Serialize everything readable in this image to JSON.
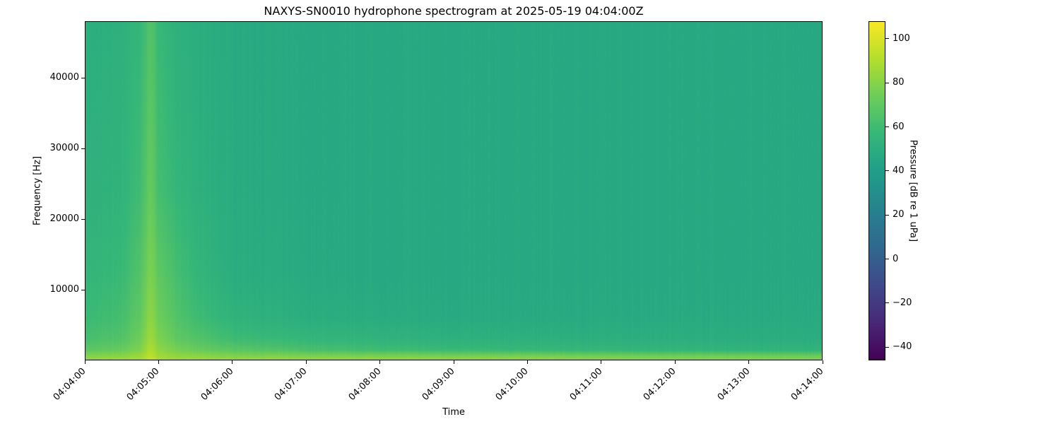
{
  "chart_data": {
    "type": "heatmap",
    "title": "NAXYS-SN0010 hydrophone spectrogram at 2025-05-19 04:04:00Z",
    "xlabel": "Time",
    "ylabel": "Frequency [Hz]",
    "colorbar_label": "Pressure [dB re 1 uPa]",
    "colormap": "viridis",
    "xlim": [
      "04:04:00",
      "04:14:00"
    ],
    "ylim": [
      0,
      48000
    ],
    "clim": [
      -46,
      108
    ],
    "x_ticks": [
      "04:04:00",
      "04:05:00",
      "04:06:00",
      "04:07:00",
      "04:08:00",
      "04:09:00",
      "04:10:00",
      "04:11:00",
      "04:12:00",
      "04:13:00",
      "04:14:00"
    ],
    "y_ticks": [
      10000,
      20000,
      30000,
      40000
    ],
    "colorbar_ticks": [
      -40,
      -20,
      0,
      20,
      40,
      60,
      80,
      100
    ],
    "grid": false,
    "times": [
      "04:04:00",
      "04:04:30",
      "04:04:45",
      "04:04:53",
      "04:05:00",
      "04:05:15",
      "04:05:30",
      "04:06:00",
      "04:07:00",
      "04:08:00",
      "04:09:00",
      "04:10:00",
      "04:11:00",
      "04:12:00",
      "04:13:00",
      "04:14:00"
    ],
    "frequencies": [
      0,
      500,
      1500,
      3000,
      6000,
      12000,
      24000,
      48000
    ],
    "values_db": [
      [
        82,
        84,
        86,
        95,
        88,
        84,
        83,
        82,
        81,
        81,
        80,
        80,
        79,
        78,
        78,
        77
      ],
      [
        80,
        82,
        85,
        94,
        87,
        83,
        82,
        80,
        79,
        79,
        78,
        78,
        77,
        76,
        76,
        75
      ],
      [
        68,
        72,
        78,
        90,
        82,
        76,
        72,
        68,
        63,
        60,
        58,
        57,
        56,
        55,
        54,
        54
      ],
      [
        62,
        66,
        74,
        86,
        78,
        70,
        66,
        60,
        56,
        54,
        52,
        52,
        51,
        51,
        50,
        50
      ],
      [
        58,
        62,
        70,
        82,
        74,
        66,
        60,
        54,
        50,
        49,
        48,
        48,
        48,
        48,
        48,
        48
      ],
      [
        55,
        58,
        66,
        78,
        70,
        62,
        56,
        50,
        48,
        47,
        47,
        47,
        47,
        47,
        47,
        47
      ],
      [
        52,
        54,
        60,
        72,
        62,
        56,
        52,
        49,
        47,
        47,
        47,
        47,
        47,
        47,
        47,
        47
      ],
      [
        50,
        52,
        56,
        66,
        58,
        52,
        50,
        48,
        47,
        47,
        47,
        47,
        47,
        47,
        47,
        47
      ]
    ]
  }
}
